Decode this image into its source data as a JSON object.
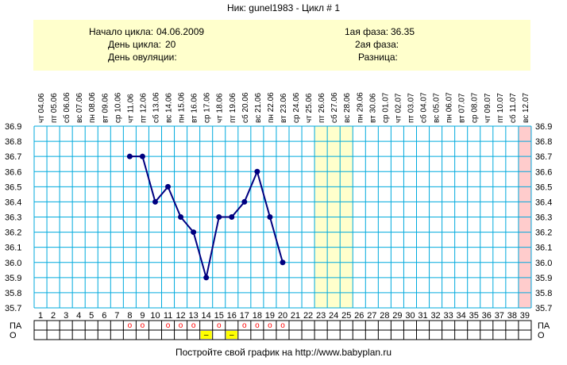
{
  "header": {
    "nick_label": "Ник:",
    "nick": "gunel1983",
    "cycle_label": "Цикл #",
    "cycle_no": "1"
  },
  "info": {
    "cycle_start_label": "Начало цикла:",
    "cycle_start": "04.06.2009",
    "cycle_day_label": "День цикла:",
    "cycle_day": "20",
    "ovulation_day_label": "День овуляции:",
    "ovulation_day": "",
    "phase1_label": "1ая фаза:",
    "phase1": "36.35",
    "phase2_label": "2ая фаза:",
    "phase2": "",
    "diff_label": "Разница:",
    "diff": ""
  },
  "footer": "Постройте свой график на http://www.babyplan.ru",
  "colors": {
    "grid": "#00aadd",
    "line": "#000080",
    "point": "#000080",
    "info_bg": "#ffffcc",
    "highlight_yellow": "#ffffcc",
    "highlight_pink": "#ffcccc",
    "mark_o": "#ff0000",
    "mark_minus_bg": "#ffff00"
  },
  "chart_data": {
    "type": "line",
    "title": "",
    "xlabel": "",
    "ylabel": "",
    "x_days": [
      1,
      2,
      3,
      4,
      5,
      6,
      7,
      8,
      9,
      10,
      11,
      12,
      13,
      14,
      15,
      16,
      17,
      18,
      19,
      20,
      21,
      22,
      23,
      24,
      25,
      26,
      27,
      28,
      29,
      30,
      31,
      32,
      33,
      34,
      35,
      36,
      37,
      38,
      39
    ],
    "top_labels": [
      "чт 04.06",
      "пт 05.06",
      "сб 06.06",
      "вс 07.06",
      "пн 08.06",
      "вт 09.06",
      "ср 10.06",
      "чт 11.06",
      "пт 12.06",
      "сб 13.06",
      "вс 14.06",
      "пн 15.06",
      "вт 16.06",
      "ср 17.06",
      "чт 18.06",
      "пт 19.06",
      "сб 20.06",
      "вс 21.06",
      "пн 22.06",
      "вт 23.06",
      "ср 24.06",
      "чт 25.06",
      "пт 26.06",
      "сб 27.06",
      "вс 28.06",
      "пн 29.06",
      "вт 30.06",
      "ср 01.07",
      "чт 02.07",
      "пт 03.07",
      "сб 04.07",
      "вс 05.07",
      "пн 06.07",
      "вт 07.07",
      "ср 08.07",
      "чт 09.07",
      "пт 10.07",
      "сб 11.07",
      "вс 12.07"
    ],
    "y_ticks": [
      "35.7",
      "35.8",
      "35.9",
      "36.0",
      "36.1",
      "36.2",
      "36.3",
      "36.4",
      "36.5",
      "36.6",
      "36.7",
      "36.8",
      "36.9"
    ],
    "ylim": [
      35.7,
      36.9
    ],
    "series": [
      {
        "values": [
          {
            "x": 8,
            "y": 36.7
          },
          {
            "x": 9,
            "y": 36.7
          },
          {
            "x": 10,
            "y": 36.4
          },
          {
            "x": 11,
            "y": 36.5
          },
          {
            "x": 12,
            "y": 36.3
          },
          {
            "x": 13,
            "y": 36.2
          },
          {
            "x": 14,
            "y": 35.9
          },
          {
            "x": 15,
            "y": 36.3
          },
          {
            "x": 16,
            "y": 36.3
          },
          {
            "x": 17,
            "y": 36.4
          },
          {
            "x": 18,
            "y": 36.6
          },
          {
            "x": 19,
            "y": 36.3
          },
          {
            "x": 20,
            "y": 36.0
          }
        ]
      }
    ],
    "highlight_yellow_days": [
      23,
      24,
      25
    ],
    "highlight_pink_days": [
      39
    ],
    "row_labels": [
      "ПА",
      "О"
    ],
    "pa_marks": [
      {
        "day": 8,
        "mark": "o"
      },
      {
        "day": 9,
        "mark": "o"
      },
      {
        "day": 11,
        "mark": "o"
      },
      {
        "day": 12,
        "mark": "o"
      },
      {
        "day": 13,
        "mark": "o"
      },
      {
        "day": 15,
        "mark": "o"
      },
      {
        "day": 17,
        "mark": "o"
      },
      {
        "day": 18,
        "mark": "o"
      },
      {
        "day": 19,
        "mark": "o"
      },
      {
        "day": 20,
        "mark": "o"
      }
    ],
    "o_marks": [
      {
        "day": 14,
        "mark": "–"
      },
      {
        "day": 16,
        "mark": "–"
      }
    ],
    "grid": true
  }
}
